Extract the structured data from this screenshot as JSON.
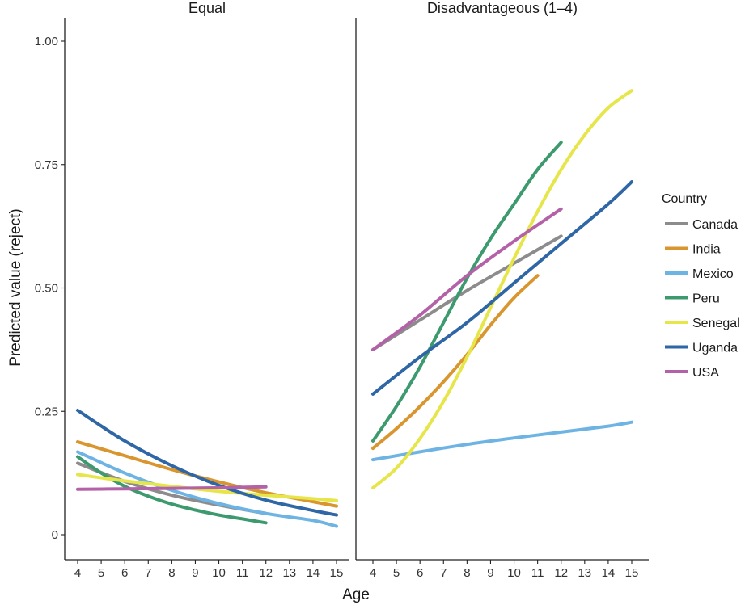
{
  "chart_data": {
    "type": "line",
    "ylabel": "Predicted value (reject)",
    "xlabel": "Age",
    "ylim": [
      0,
      1.05
    ],
    "yticks": [
      0,
      0.25,
      0.5,
      0.75,
      1.0
    ],
    "ytick_labels": [
      "0",
      "0.25",
      "0.50",
      "0.75",
      "1.00"
    ],
    "xlim": [
      3.4,
      15.6
    ],
    "xticks": [
      4,
      5,
      6,
      7,
      8,
      9,
      10,
      11,
      12,
      13,
      14,
      15
    ],
    "grid": false,
    "legend": {
      "title": "Country",
      "placement": "right",
      "entries": [
        {
          "name": "Canada",
          "color": "#8c8c8c"
        },
        {
          "name": "India",
          "color": "#d9952e"
        },
        {
          "name": "Mexico",
          "color": "#6db3e3"
        },
        {
          "name": "Peru",
          "color": "#3c9a6e"
        },
        {
          "name": "Senegal",
          "color": "#e6e64a"
        },
        {
          "name": "Uganda",
          "color": "#2f66a6"
        },
        {
          "name": "USA",
          "color": "#b462a8"
        }
      ]
    },
    "panels": [
      {
        "title": "Equal",
        "series": [
          {
            "name": "Canada",
            "x": [
              4,
              6,
              8,
              10,
              12
            ],
            "y": [
              0.145,
              0.108,
              0.08,
              0.06,
              0.043
            ]
          },
          {
            "name": "India",
            "x": [
              4,
              6,
              8,
              10,
              12,
              14,
              15
            ],
            "y": [
              0.188,
              0.16,
              0.132,
              0.107,
              0.085,
              0.067,
              0.058
            ]
          },
          {
            "name": "Mexico",
            "x": [
              4,
              6,
              8,
              10,
              12,
              14,
              15
            ],
            "y": [
              0.168,
              0.125,
              0.09,
              0.063,
              0.043,
              0.029,
              0.017
            ]
          },
          {
            "name": "Peru",
            "x": [
              4,
              5,
              6,
              7,
              8,
              9,
              10,
              11,
              12
            ],
            "y": [
              0.158,
              0.125,
              0.098,
              0.078,
              0.062,
              0.05,
              0.04,
              0.032,
              0.024
            ]
          },
          {
            "name": "Senegal",
            "x": [
              4,
              6,
              8,
              10,
              12,
              14,
              15
            ],
            "y": [
              0.122,
              0.109,
              0.098,
              0.088,
              0.08,
              0.073,
              0.069
            ]
          },
          {
            "name": "Uganda",
            "x": [
              4,
              6,
              8,
              10,
              12,
              14,
              15
            ],
            "y": [
              0.252,
              0.19,
              0.14,
              0.1,
              0.07,
              0.049,
              0.04
            ]
          },
          {
            "name": "USA",
            "x": [
              4,
              6,
              8,
              10,
              12
            ],
            "y": [
              0.092,
              0.093,
              0.094,
              0.095,
              0.097
            ]
          }
        ]
      },
      {
        "title": "Disadvantageous (1–4)",
        "series": [
          {
            "name": "Canada",
            "x": [
              4,
              6,
              8,
              10,
              12
            ],
            "y": [
              0.375,
              0.435,
              0.495,
              0.55,
              0.605
            ]
          },
          {
            "name": "India",
            "x": [
              4,
              5,
              6,
              7,
              8,
              9,
              10,
              11
            ],
            "y": [
              0.175,
              0.215,
              0.26,
              0.31,
              0.365,
              0.425,
              0.48,
              0.525
            ]
          },
          {
            "name": "Mexico",
            "x": [
              4,
              6,
              8,
              10,
              12,
              14,
              15
            ],
            "y": [
              0.152,
              0.168,
              0.183,
              0.196,
              0.208,
              0.22,
              0.228
            ]
          },
          {
            "name": "Peru",
            "x": [
              4,
              5,
              6,
              7,
              8,
              9,
              10,
              11,
              12
            ],
            "y": [
              0.19,
              0.26,
              0.34,
              0.43,
              0.52,
              0.6,
              0.67,
              0.74,
              0.795
            ]
          },
          {
            "name": "Senegal",
            "x": [
              4,
              5,
              6,
              7,
              8,
              9,
              10,
              11,
              12,
              13,
              14,
              15
            ],
            "y": [
              0.095,
              0.135,
              0.195,
              0.27,
              0.36,
              0.46,
              0.56,
              0.655,
              0.74,
              0.81,
              0.865,
              0.9
            ]
          },
          {
            "name": "Uganda",
            "x": [
              4,
              6,
              8,
              10,
              12,
              14,
              15
            ],
            "y": [
              0.285,
              0.36,
              0.43,
              0.51,
              0.59,
              0.67,
              0.715
            ]
          },
          {
            "name": "USA",
            "x": [
              4,
              6,
              8,
              10,
              12
            ],
            "y": [
              0.375,
              0.445,
              0.525,
              0.595,
              0.66
            ]
          }
        ]
      }
    ]
  }
}
